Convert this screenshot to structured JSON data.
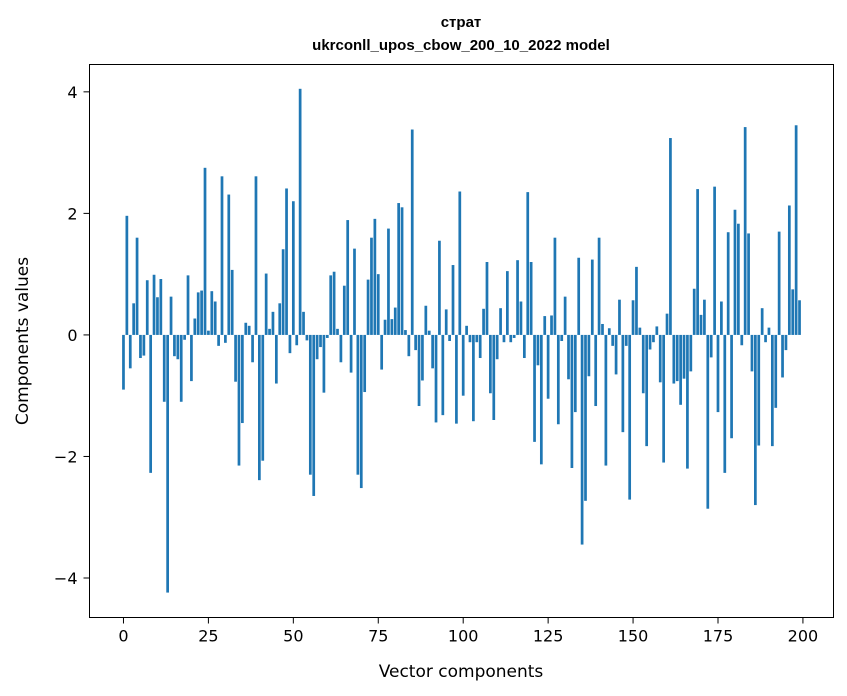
{
  "chart_data": {
    "type": "bar",
    "title_line1": "страт",
    "title_line2": "ukrconll_upos_cbow_200_10_2022 model",
    "xlabel": "Vector components",
    "ylabel": "Components values",
    "xlim": [
      -10,
      209
    ],
    "ylim": [
      -4.65,
      4.45
    ],
    "xticks": [
      0,
      25,
      50,
      75,
      100,
      125,
      150,
      175,
      200
    ],
    "yticks": [
      -4,
      -2,
      0,
      2,
      4
    ],
    "ytick_labels": [
      "−4",
      "−2",
      "0",
      "2",
      "4"
    ],
    "bar_color": "#1f77b4",
    "values": [
      -0.9,
      1.96,
      -0.55,
      0.52,
      1.6,
      -0.38,
      -0.34,
      0.9,
      -2.27,
      0.99,
      0.62,
      0.92,
      -1.1,
      -4.24,
      0.63,
      -0.35,
      -0.4,
      -1.1,
      -0.08,
      0.98,
      -0.76,
      0.27,
      0.7,
      0.73,
      2.75,
      0.07,
      0.72,
      0.55,
      -0.18,
      2.61,
      -0.13,
      2.31,
      1.07,
      -0.77,
      -2.15,
      -1.45,
      0.2,
      0.15,
      -0.45,
      2.61,
      -2.39,
      -2.07,
      1.01,
      0.1,
      0.38,
      -0.8,
      0.52,
      1.41,
      2.41,
      -0.3,
      2.2,
      -0.17,
      4.05,
      0.38,
      -0.09,
      -2.3,
      -2.65,
      -0.4,
      -0.2,
      -0.95,
      -0.05,
      0.98,
      1.04,
      0.1,
      -0.45,
      0.81,
      1.89,
      -0.62,
      1.42,
      -2.3,
      -2.52,
      -0.94,
      0.91,
      1.6,
      1.91,
      1.0,
      -0.57,
      0.25,
      1.75,
      0.26,
      0.45,
      2.17,
      2.1,
      0.08,
      -0.35,
      3.38,
      -0.25,
      -1.17,
      -0.75,
      0.48,
      0.07,
      -0.55,
      -1.44,
      1.55,
      -1.32,
      0.42,
      -0.1,
      1.15,
      -1.46,
      2.36,
      -1.0,
      0.15,
      -0.12,
      -1.42,
      -0.12,
      -0.38,
      0.43,
      1.2,
      -0.96,
      -1.4,
      -0.4,
      0.44,
      -0.12,
      1.05,
      -0.12,
      -0.05,
      1.23,
      0.55,
      -0.38,
      2.35,
      1.2,
      -1.76,
      -0.5,
      -2.13,
      0.31,
      -1.05,
      0.32,
      1.6,
      -1.47,
      -0.1,
      0.63,
      -0.73,
      -2.19,
      -1.27,
      1.27,
      -3.45,
      -2.73,
      -0.68,
      1.24,
      -1.17,
      1.6,
      0.18,
      -2.15,
      0.11,
      -0.18,
      -0.65,
      0.58,
      -1.6,
      -0.18,
      -2.71,
      0.57,
      1.12,
      0.12,
      -0.96,
      -1.83,
      -0.24,
      -0.12,
      0.14,
      -0.78,
      -2.1,
      0.35,
      3.24,
      -0.8,
      -0.76,
      -1.15,
      -0.72,
      -2.2,
      -0.6,
      0.76,
      2.4,
      0.33,
      0.58,
      -2.86,
      -0.37,
      2.44,
      -1.27,
      0.55,
      -2.27,
      1.69,
      -1.7,
      2.06,
      1.83,
      -0.17,
      3.42,
      1.67,
      -0.6,
      -2.8,
      -1.82,
      0.44,
      -0.12,
      0.12,
      -1.83,
      -1.2,
      1.7,
      -0.7,
      -0.25,
      2.13,
      0.75,
      3.45,
      0.57
    ]
  }
}
